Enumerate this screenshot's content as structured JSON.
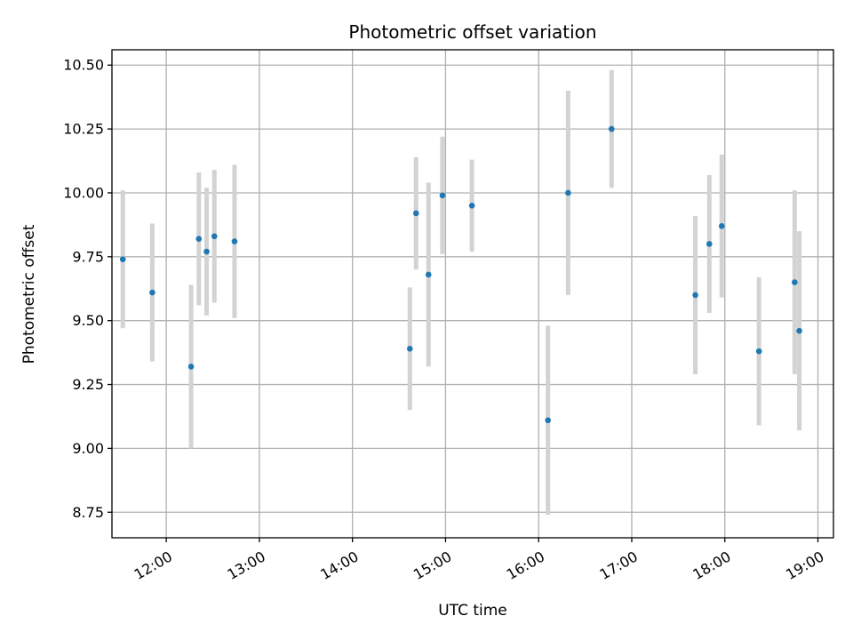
{
  "chart_data": {
    "type": "scatter",
    "title": "Photometric offset variation",
    "xlabel": "UTC time",
    "ylabel": "Photometric offset",
    "x_ticks": [
      "12:00",
      "13:00",
      "14:00",
      "15:00",
      "16:00",
      "17:00",
      "18:00",
      "19:00"
    ],
    "y_ticks": [
      "8.75",
      "9.00",
      "9.25",
      "9.50",
      "9.75",
      "10.00",
      "10.25",
      "10.50"
    ],
    "xlim": [
      "11:25",
      "19:10"
    ],
    "ylim": [
      8.65,
      10.56
    ],
    "grid": true,
    "colors": {
      "points": "#1f77b4",
      "error_bars": "#d3d3d3",
      "grid": "#b0b0b0"
    },
    "series": [
      {
        "points": [
          {
            "x": "11:32",
            "y": 9.74,
            "err": 0.27
          },
          {
            "x": "11:51",
            "y": 9.61,
            "err": 0.27
          },
          {
            "x": "12:16",
            "y": 9.32,
            "err": 0.32
          },
          {
            "x": "12:21",
            "y": 9.82,
            "err": 0.26
          },
          {
            "x": "12:26",
            "y": 9.77,
            "err": 0.25
          },
          {
            "x": "12:31",
            "y": 9.83,
            "err": 0.26
          },
          {
            "x": "12:44",
            "y": 9.81,
            "err": 0.3
          },
          {
            "x": "14:37",
            "y": 9.39,
            "err": 0.24
          },
          {
            "x": "14:41",
            "y": 9.92,
            "err": 0.22
          },
          {
            "x": "14:49",
            "y": 9.68,
            "err": 0.36
          },
          {
            "x": "14:58",
            "y": 9.99,
            "err": 0.23
          },
          {
            "x": "15:17",
            "y": 9.95,
            "err": 0.18
          },
          {
            "x": "16:06",
            "y": 9.11,
            "err": 0.37
          },
          {
            "x": "16:19",
            "y": 10.0,
            "err": 0.4
          },
          {
            "x": "16:47",
            "y": 10.25,
            "err": 0.23
          },
          {
            "x": "17:41",
            "y": 9.6,
            "err": 0.31
          },
          {
            "x": "17:50",
            "y": 9.8,
            "err": 0.27
          },
          {
            "x": "17:58",
            "y": 9.87,
            "err": 0.28
          },
          {
            "x": "18:22",
            "y": 9.38,
            "err": 0.29
          },
          {
            "x": "18:45",
            "y": 9.65,
            "err": 0.36
          },
          {
            "x": "18:48",
            "y": 9.46,
            "err": 0.39
          }
        ]
      }
    ]
  }
}
